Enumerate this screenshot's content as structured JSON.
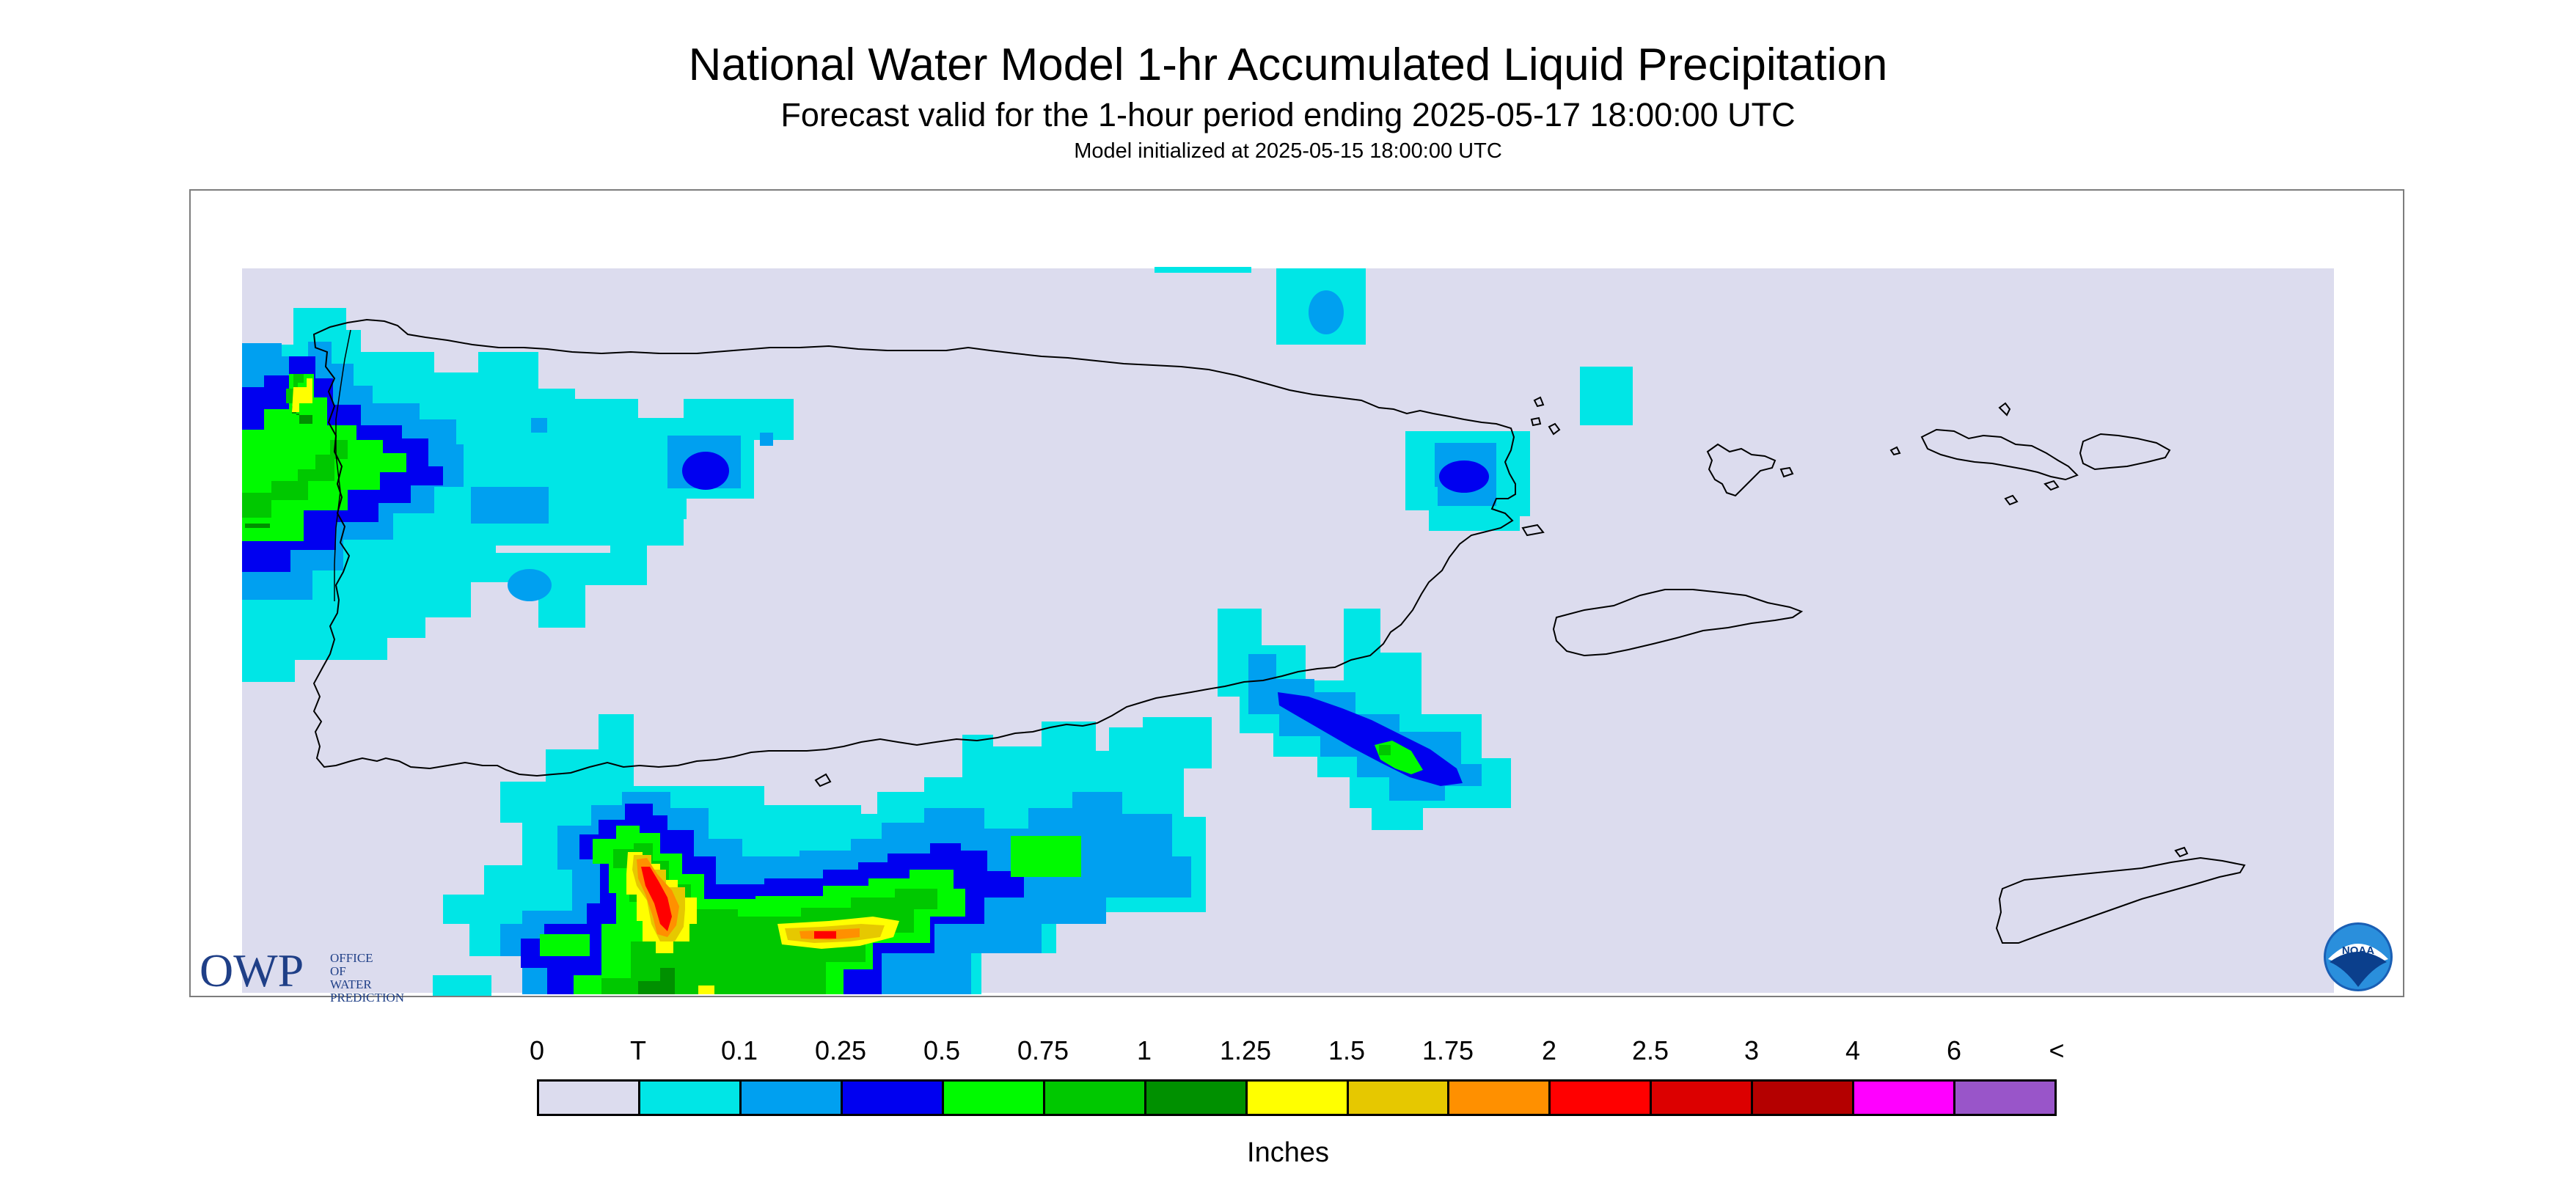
{
  "header": {
    "title": "National Water Model 1-hr Accumulated Liquid Precipitation",
    "subtitle": "Forecast valid for the 1-hour period ending 2025-05-17 18:00:00 UTC",
    "init": "Model initialized at 2025-05-15 18:00:00 UTC"
  },
  "logos": {
    "owp_big": "OWP",
    "owp_small": "OFFICE OF WATER PREDICTION",
    "noaa": "NOAA"
  },
  "legend": {
    "labels": [
      "0",
      "T",
      "0.1",
      "0.25",
      "0.5",
      "0.75",
      "1",
      "1.25",
      "1.5",
      "1.75",
      "2",
      "2.5",
      "3",
      "4",
      "6",
      "<"
    ],
    "colors": [
      "#dcdcee",
      "#00e6e6",
      "#00a0f0",
      "#0000f0",
      "#00fa00",
      "#00c800",
      "#009000",
      "#ffff00",
      "#e6c800",
      "#ff9000",
      "#ff0000",
      "#dc0000",
      "#b40000",
      "#ff00ff",
      "#9955c9"
    ],
    "units": "Inches"
  },
  "map": {
    "background": "#dcdcee",
    "coast_color": "#000000"
  }
}
